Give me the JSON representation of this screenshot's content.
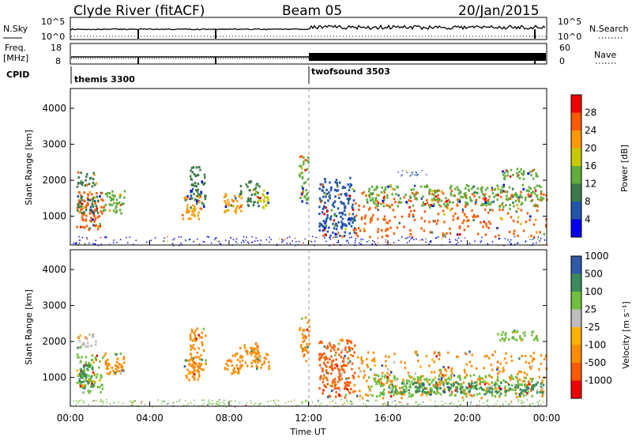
{
  "header": {
    "station": "Clyde River (fitACF)",
    "beam": "Beam 05",
    "date": "20/Jan/2015"
  },
  "panels": {
    "nsky": {
      "label": "N.Sky",
      "tick_top": "10^5",
      "tick_bottom": "10^0"
    },
    "nsearch": {
      "label": "N.Search",
      "tick_top": "10^5",
      "tick_bottom": "10^0"
    },
    "freq": {
      "label_line1": "Freq.",
      "label_line2": "[MHz]",
      "tick_top": "18",
      "tick_bottom": "8"
    },
    "nave": {
      "label": "Nave",
      "tick_top": "60",
      "tick_bottom": "0"
    },
    "cpid": {
      "label": "CPID",
      "modes": [
        "themis 3300",
        "twofsound 3503"
      ]
    }
  },
  "colors": {
    "power": [
      "#0000ee",
      "#2255aa",
      "#3a7a4a",
      "#5fae3a",
      "#c8c800",
      "#ff9900",
      "#ff5a00",
      "#ee0000"
    ],
    "velocity": [
      "#ee0000",
      "#ff5a00",
      "#ff8c00",
      "#ffb000",
      "#bdbdbd",
      "#6fbf3c",
      "#3a8a5a",
      "#2e5aa8"
    ]
  },
  "chart_data": [
    {
      "type": "heatmap",
      "name": "power",
      "ylabel": "Slant Range [km]",
      "colorbar_label": "Power [dB]",
      "colorbar_ticks": [
        "4",
        "8",
        "12",
        "16",
        "20",
        "24",
        "28"
      ],
      "ylim": [
        200,
        4550
      ],
      "yticks": [
        "1000",
        "2000",
        "3000",
        "4000"
      ],
      "ytick_values": [
        1000,
        2000,
        3000,
        4000
      ],
      "xlim_hours": [
        0,
        24
      ],
      "regions": [
        {
          "t": [
            0.3,
            1.6
          ],
          "r": [
            650,
            1700
          ],
          "v": 28
        },
        {
          "t": [
            0.3,
            1.4
          ],
          "r": [
            1100,
            1600
          ],
          "v": 12
        },
        {
          "t": [
            0.3,
            1.3
          ],
          "r": [
            1850,
            2250
          ],
          "v": 10
        },
        {
          "t": [
            1.6,
            2.7
          ],
          "r": [
            1100,
            1750
          ],
          "v": 14
        },
        {
          "t": [
            5.6,
            6.5
          ],
          "r": [
            950,
            1600
          ],
          "v": 24
        },
        {
          "t": [
            6.0,
            6.8
          ],
          "r": [
            1200,
            2400
          ],
          "v": 10
        },
        {
          "t": [
            7.7,
            8.6
          ],
          "r": [
            1100,
            1700
          ],
          "v": 22
        },
        {
          "t": [
            8.5,
            9.5
          ],
          "r": [
            1300,
            2000
          ],
          "v": 12
        },
        {
          "t": [
            9.3,
            10.0
          ],
          "r": [
            1250,
            1750
          ],
          "v": 18
        },
        {
          "t": [
            11.5,
            12.0
          ],
          "r": [
            1400,
            2700
          ],
          "v": 16
        },
        {
          "t": [
            12.5,
            14.3
          ],
          "r": [
            450,
            2100
          ],
          "v": 8
        },
        {
          "t": [
            14.3,
            24.0
          ],
          "r": [
            450,
            1750
          ],
          "v": 28
        },
        {
          "t": [
            14.8,
            23.8
          ],
          "r": [
            1300,
            1900
          ],
          "v": 16
        },
        {
          "t": [
            16.5,
            18.0
          ],
          "r": [
            2100,
            2300
          ],
          "v": 8
        },
        {
          "t": [
            21.5,
            23.5
          ],
          "r": [
            2050,
            2350
          ],
          "v": 16
        },
        {
          "t": [
            0.0,
            24.0
          ],
          "r": [
            200,
            450
          ],
          "v": 4
        }
      ]
    },
    {
      "type": "heatmap",
      "name": "velocity",
      "ylabel": "Slant Range [km]",
      "xlabel": "Time UT",
      "colorbar_label": "Velocity [m s⁻¹]",
      "colorbar_ticks": [
        "-1000",
        "-500",
        "-100",
        "-25",
        "25",
        "100",
        "500",
        "1000"
      ],
      "ylim": [
        200,
        4550
      ],
      "yticks": [
        "1000",
        "2000",
        "3000",
        "4000"
      ],
      "ytick_values": [
        1000,
        2000,
        3000,
        4000
      ],
      "xlim_hours": [
        0,
        24
      ],
      "xticks": [
        "00:00",
        "04:00",
        "08:00",
        "12:00",
        "16:00",
        "20:00",
        "00:00"
      ],
      "xtick_hours": [
        0,
        4,
        8,
        12,
        16,
        20,
        24
      ],
      "regions": [
        {
          "t": [
            0.3,
            1.6
          ],
          "r": [
            600,
            1700
          ],
          "v": 100
        },
        {
          "t": [
            0.4,
            1.2
          ],
          "r": [
            700,
            1400
          ],
          "v": 500
        },
        {
          "t": [
            0.3,
            1.3
          ],
          "r": [
            1850,
            2250
          ],
          "v": 25
        },
        {
          "t": [
            1.6,
            2.7
          ],
          "r": [
            1100,
            1750
          ],
          "v": -100
        },
        {
          "t": [
            5.6,
            6.5
          ],
          "r": [
            950,
            1600
          ],
          "v": -100
        },
        {
          "t": [
            6.0,
            6.8
          ],
          "r": [
            1200,
            2400
          ],
          "v": -100
        },
        {
          "t": [
            7.7,
            8.6
          ],
          "r": [
            1100,
            1700
          ],
          "v": -100
        },
        {
          "t": [
            8.5,
            9.5
          ],
          "r": [
            1300,
            2000
          ],
          "v": -100
        },
        {
          "t": [
            9.3,
            10.0
          ],
          "r": [
            1250,
            1750
          ],
          "v": -100
        },
        {
          "t": [
            11.5,
            12.0
          ],
          "r": [
            1400,
            2700
          ],
          "v": -100
        },
        {
          "t": [
            12.5,
            14.3
          ],
          "r": [
            450,
            2100
          ],
          "v": -500
        },
        {
          "t": [
            14.3,
            24.0
          ],
          "r": [
            450,
            1750
          ],
          "v": -100
        },
        {
          "t": [
            15.0,
            23.5
          ],
          "r": [
            500,
            1100
          ],
          "v": 100
        },
        {
          "t": [
            16.0,
            23.8
          ],
          "r": [
            600,
            900
          ],
          "v": 500
        },
        {
          "t": [
            21.5,
            23.5
          ],
          "r": [
            2050,
            2350
          ],
          "v": 100
        },
        {
          "t": [
            0.0,
            24.0
          ],
          "r": [
            200,
            400
          ],
          "v": 100
        }
      ]
    }
  ]
}
